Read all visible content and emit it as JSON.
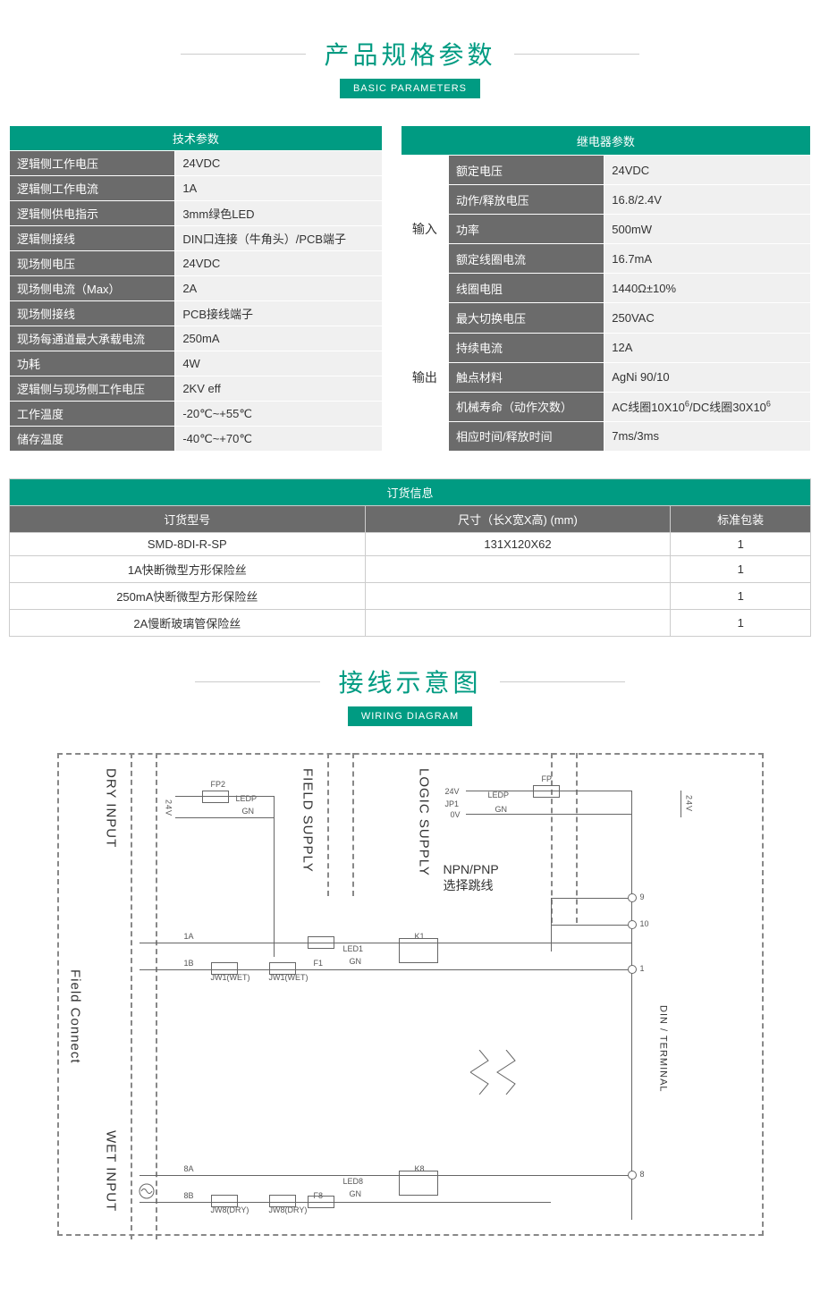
{
  "colors": {
    "teal": "#009b82",
    "dark_gray": "#6b6b6b",
    "light_gray_bg": "#f0f0f0",
    "border_gray": "#cccccc",
    "text": "#333333"
  },
  "section1": {
    "title_cn": "产品规格参数",
    "title_en": "BASIC PARAMETERS"
  },
  "tech_params": {
    "header": "技术参数",
    "rows": [
      {
        "label": "逻辑侧工作电压",
        "value": "24VDC"
      },
      {
        "label": "逻辑侧工作电流",
        "value": "1A"
      },
      {
        "label": "逻辑侧供电指示",
        "value": "3mm绿色LED"
      },
      {
        "label": "逻辑侧接线",
        "value": "DIN口连接（牛角头）/PCB端子"
      },
      {
        "label": "现场侧电压",
        "value": "24VDC"
      },
      {
        "label": "现场侧电流（Max）",
        "value": "2A"
      },
      {
        "label": "现场侧接线",
        "value": "PCB接线端子"
      },
      {
        "label": "现场每通道最大承载电流",
        "value": "250mA"
      },
      {
        "label": "功耗",
        "value": "4W"
      },
      {
        "label": "逻辑侧与现场侧工作电压",
        "value": "2KV eff"
      },
      {
        "label": "工作温度",
        "value": "-20℃~+55℃"
      },
      {
        "label": "储存温度",
        "value": "-40℃~+70℃"
      }
    ]
  },
  "relay_params": {
    "header": "继电器参数",
    "input_label": "输入",
    "output_label": "输出",
    "input_rows": [
      {
        "label": "额定电压",
        "value": "24VDC"
      },
      {
        "label": "动作/释放电压",
        "value": "16.8/2.4V"
      },
      {
        "label": "功率",
        "value": "500mW"
      },
      {
        "label": "额定线圈电流",
        "value": "16.7mA"
      },
      {
        "label": "线圈电阻",
        "value": "1440Ω±10%"
      }
    ],
    "output_rows": [
      {
        "label": "最大切换电压",
        "value": "250VAC"
      },
      {
        "label": "持续电流",
        "value": "12A"
      },
      {
        "label": "触点材料",
        "value": "AgNi 90/10"
      },
      {
        "label": "机械寿命（动作次数）",
        "value_html": "AC线圈10X10<sup>6</sup>/DC线圈30X10<sup>6</sup>"
      },
      {
        "label": "相应时间/释放时间",
        "value": "7ms/3ms"
      }
    ]
  },
  "order_info": {
    "top_header": "订货信息",
    "columns": [
      "订货型号",
      "尺寸（长X宽X高) (mm)",
      "标准包装"
    ],
    "rows": [
      [
        "SMD-8DI-R-SP",
        "131X120X62",
        "1"
      ],
      [
        "1A快断微型方形保险丝",
        "",
        "1"
      ],
      [
        "250mA快断微型方形保险丝",
        "",
        "1"
      ],
      [
        "2A慢断玻璃管保险丝",
        "",
        "1"
      ]
    ]
  },
  "section2": {
    "title_cn": "接线示意图",
    "title_en": "WIRING DIAGRAM"
  },
  "diagram": {
    "labels": {
      "field_connect": "Field Connect",
      "dry_input": "DRY  INPUT",
      "wet_input": "WET INPUT",
      "field_supply": "FIELD  SUPPLY",
      "logic_supply": "LOGIC  SUPPLY",
      "din_terminal": "DIN  /  TERMINAL",
      "npn_pnp": "NPN/PNP",
      "npn_pnp_sub": "选择跳线",
      "v24": "24V",
      "v0": "0V",
      "jp1": "JP1",
      "fp": "FP",
      "fp2": "FP2",
      "ledp": "LEDP",
      "gn": "GN",
      "a1": "1A",
      "b1": "1B",
      "jw1_wet": "JW1(WET)",
      "f1": "F1",
      "led1": "LED1",
      "k1": "K1",
      "a8": "8A",
      "b8": "8B",
      "jw8_dry": "JW8(DRY)",
      "f8": "F8",
      "led8": "LED8",
      "k8": "K8",
      "t9": "9",
      "t10": "10",
      "t1": "1",
      "t8": "8",
      "v24v": "24V"
    }
  }
}
